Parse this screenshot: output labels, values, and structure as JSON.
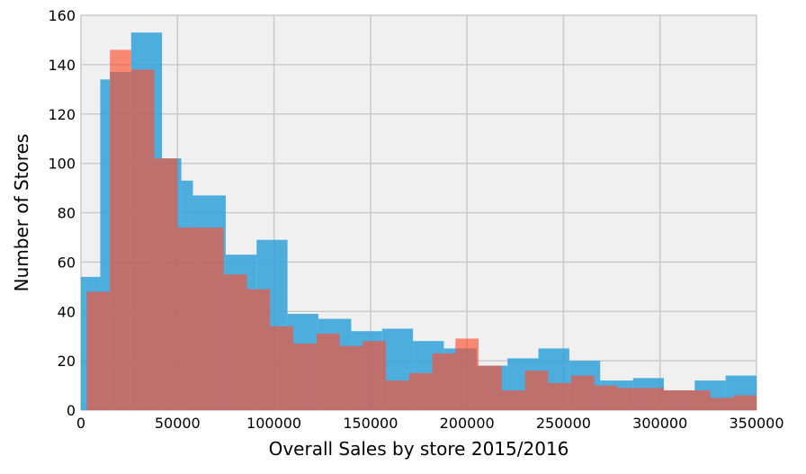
{
  "chart_data": {
    "type": "bar",
    "title": "",
    "xlabel": "Overall Sales by store 2015/2016",
    "ylabel": "Number of Stores",
    "xlim": [
      0,
      350000
    ],
    "ylim": [
      0,
      160
    ],
    "xticks": [
      0,
      50000,
      100000,
      150000,
      200000,
      250000,
      300000,
      350000
    ],
    "yticks": [
      0,
      20,
      40,
      60,
      80,
      100,
      120,
      140,
      160
    ],
    "grid": true,
    "legend": "none",
    "series": [
      {
        "color": "#30a2da",
        "alpha": 0.85,
        "bins": [
          {
            "x0": 0,
            "x1": 10000,
            "y": 54
          },
          {
            "x0": 10000,
            "x1": 15000,
            "y": 134
          },
          {
            "x0": 15000,
            "x1": 26000,
            "y": 137
          },
          {
            "x0": 26000,
            "x1": 42000,
            "y": 153
          },
          {
            "x0": 42000,
            "x1": 52000,
            "y": 102
          },
          {
            "x0": 52000,
            "x1": 58000,
            "y": 93
          },
          {
            "x0": 58000,
            "x1": 75000,
            "y": 87
          },
          {
            "x0": 75000,
            "x1": 91000,
            "y": 63
          },
          {
            "x0": 91000,
            "x1": 107000,
            "y": 69
          },
          {
            "x0": 107000,
            "x1": 123000,
            "y": 39
          },
          {
            "x0": 123000,
            "x1": 140000,
            "y": 37
          },
          {
            "x0": 140000,
            "x1": 156000,
            "y": 32
          },
          {
            "x0": 156000,
            "x1": 172000,
            "y": 33
          },
          {
            "x0": 172000,
            "x1": 188000,
            "y": 28
          },
          {
            "x0": 188000,
            "x1": 205000,
            "y": 25
          },
          {
            "x0": 205000,
            "x1": 221000,
            "y": 18
          },
          {
            "x0": 221000,
            "x1": 237000,
            "y": 21
          },
          {
            "x0": 237000,
            "x1": 253000,
            "y": 25
          },
          {
            "x0": 253000,
            "x1": 269000,
            "y": 20
          },
          {
            "x0": 269000,
            "x1": 286000,
            "y": 12
          },
          {
            "x0": 286000,
            "x1": 302000,
            "y": 13
          },
          {
            "x0": 302000,
            "x1": 318000,
            "y": 8
          },
          {
            "x0": 318000,
            "x1": 334000,
            "y": 12
          },
          {
            "x0": 334000,
            "x1": 350000,
            "y": 14
          }
        ]
      },
      {
        "color": "#fc4f30",
        "alpha": 0.65,
        "bins": [
          {
            "x0": 3000,
            "x1": 15000,
            "y": 48
          },
          {
            "x0": 15000,
            "x1": 26000,
            "y": 146
          },
          {
            "x0": 26000,
            "x1": 38000,
            "y": 138
          },
          {
            "x0": 38000,
            "x1": 50000,
            "y": 102
          },
          {
            "x0": 50000,
            "x1": 62000,
            "y": 74
          },
          {
            "x0": 62000,
            "x1": 74000,
            "y": 74
          },
          {
            "x0": 74000,
            "x1": 86000,
            "y": 55
          },
          {
            "x0": 86000,
            "x1": 98000,
            "y": 49
          },
          {
            "x0": 98000,
            "x1": 110000,
            "y": 34
          },
          {
            "x0": 110000,
            "x1": 122000,
            "y": 27
          },
          {
            "x0": 122000,
            "x1": 134000,
            "y": 31
          },
          {
            "x0": 134000,
            "x1": 146000,
            "y": 26
          },
          {
            "x0": 146000,
            "x1": 158000,
            "y": 28
          },
          {
            "x0": 158000,
            "x1": 170000,
            "y": 12
          },
          {
            "x0": 170000,
            "x1": 182000,
            "y": 15
          },
          {
            "x0": 182000,
            "x1": 194000,
            "y": 23
          },
          {
            "x0": 194000,
            "x1": 206000,
            "y": 29
          },
          {
            "x0": 206000,
            "x1": 218000,
            "y": 18
          },
          {
            "x0": 218000,
            "x1": 230000,
            "y": 8
          },
          {
            "x0": 230000,
            "x1": 242000,
            "y": 16
          },
          {
            "x0": 242000,
            "x1": 254000,
            "y": 11
          },
          {
            "x0": 254000,
            "x1": 266000,
            "y": 14
          },
          {
            "x0": 266000,
            "x1": 278000,
            "y": 10
          },
          {
            "x0": 278000,
            "x1": 290000,
            "y": 9
          },
          {
            "x0": 290000,
            "x1": 302000,
            "y": 9
          },
          {
            "x0": 302000,
            "x1": 314000,
            "y": 8
          },
          {
            "x0": 314000,
            "x1": 326000,
            "y": 8
          },
          {
            "x0": 326000,
            "x1": 338000,
            "y": 5
          },
          {
            "x0": 338000,
            "x1": 350000,
            "y": 6
          }
        ]
      }
    ],
    "style": {
      "plot_background": "#f0f0f0",
      "grid_color": "#cbcbcb"
    }
  }
}
